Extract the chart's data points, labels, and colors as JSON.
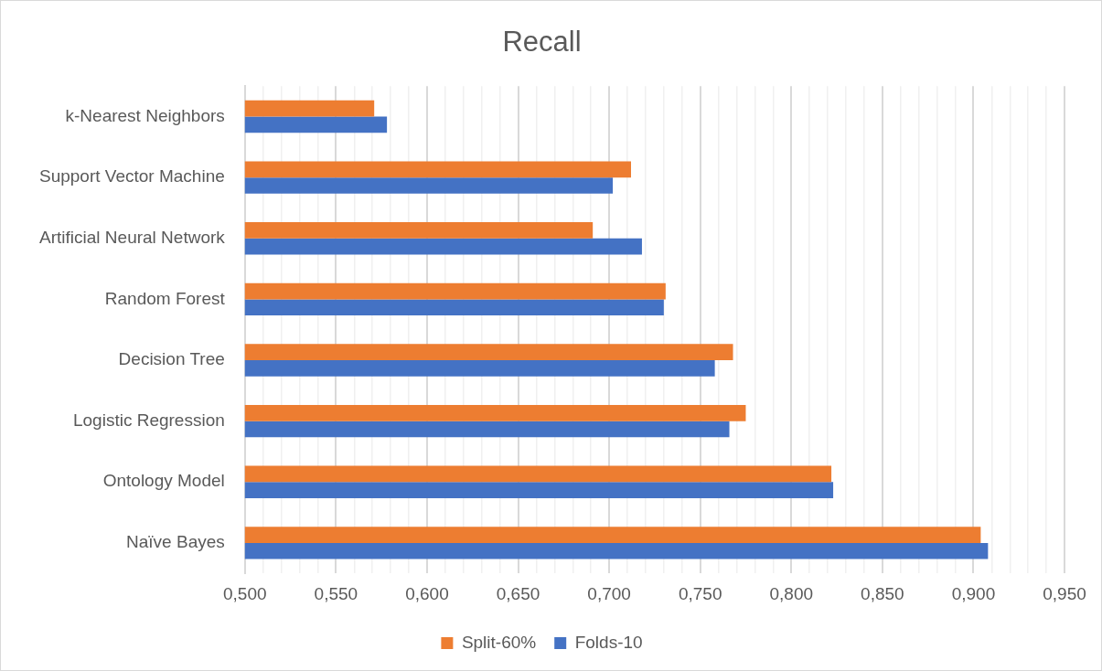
{
  "chart_data": {
    "type": "bar",
    "orientation": "horizontal",
    "title": "Recall",
    "categories": [
      "k-Nearest Neighbors",
      "Support Vector Machine",
      "Artificial Neural Network",
      "Random Forest",
      "Decision Tree",
      "Logistic Regression",
      "Ontology Model",
      "Naïve Bayes"
    ],
    "series": [
      {
        "name": "Split-60%",
        "color": "#ed7d31",
        "values": [
          0.571,
          0.712,
          0.691,
          0.731,
          0.768,
          0.775,
          0.822,
          0.904
        ]
      },
      {
        "name": "Folds-10",
        "color": "#4472c4",
        "values": [
          0.578,
          0.702,
          0.718,
          0.73,
          0.758,
          0.766,
          0.823,
          0.908
        ]
      }
    ],
    "xlim": [
      0.5,
      0.95
    ],
    "xticks": [
      {
        "value": 0.5,
        "label": "0,500"
      },
      {
        "value": 0.51,
        "label": null
      },
      {
        "value": 0.52,
        "label": null
      },
      {
        "value": 0.53,
        "label": null
      },
      {
        "value": 0.54,
        "label": null
      },
      {
        "value": 0.55,
        "label": "0,550"
      },
      {
        "value": 0.56,
        "label": null
      },
      {
        "value": 0.57,
        "label": null
      },
      {
        "value": 0.58,
        "label": null
      },
      {
        "value": 0.59,
        "label": null
      },
      {
        "value": 0.6,
        "label": "0,600"
      },
      {
        "value": 0.61,
        "label": null
      },
      {
        "value": 0.62,
        "label": null
      },
      {
        "value": 0.63,
        "label": null
      },
      {
        "value": 0.64,
        "label": null
      },
      {
        "value": 0.65,
        "label": "0,650"
      },
      {
        "value": 0.66,
        "label": null
      },
      {
        "value": 0.67,
        "label": null
      },
      {
        "value": 0.68,
        "label": null
      },
      {
        "value": 0.69,
        "label": null
      },
      {
        "value": 0.7,
        "label": "0,700"
      },
      {
        "value": 0.71,
        "label": null
      },
      {
        "value": 0.72,
        "label": null
      },
      {
        "value": 0.73,
        "label": null
      },
      {
        "value": 0.74,
        "label": null
      },
      {
        "value": 0.75,
        "label": "0,750"
      },
      {
        "value": 0.76,
        "label": null
      },
      {
        "value": 0.77,
        "label": null
      },
      {
        "value": 0.78,
        "label": null
      },
      {
        "value": 0.79,
        "label": null
      },
      {
        "value": 0.8,
        "label": "0,800"
      },
      {
        "value": 0.81,
        "label": null
      },
      {
        "value": 0.82,
        "label": null
      },
      {
        "value": 0.83,
        "label": null
      },
      {
        "value": 0.84,
        "label": null
      },
      {
        "value": 0.85,
        "label": "0,850"
      },
      {
        "value": 0.86,
        "label": null
      },
      {
        "value": 0.87,
        "label": null
      },
      {
        "value": 0.88,
        "label": null
      },
      {
        "value": 0.89,
        "label": null
      },
      {
        "value": 0.9,
        "label": "0,900"
      },
      {
        "value": 0.91,
        "label": null
      },
      {
        "value": 0.92,
        "label": null
      },
      {
        "value": 0.93,
        "label": null
      },
      {
        "value": 0.94,
        "label": null
      },
      {
        "value": 0.95,
        "label": "0,950"
      }
    ],
    "grid": "x",
    "legend": "bottom"
  }
}
